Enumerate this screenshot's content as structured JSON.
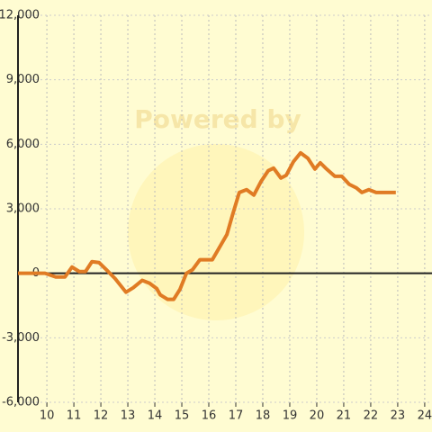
{
  "chart_data": {
    "type": "line",
    "watermark": "Powered by",
    "x": [
      8.93,
      9.93,
      10.33,
      10.67,
      10.93,
      11.2,
      11.43,
      11.67,
      11.93,
      12.2,
      12.53,
      12.93,
      13.2,
      13.53,
      13.8,
      14.07,
      14.2,
      14.47,
      14.7,
      14.93,
      15.17,
      15.4,
      15.67,
      16.13,
      16.67,
      16.87,
      17.13,
      17.4,
      17.67,
      17.93,
      18.2,
      18.4,
      18.67,
      18.87,
      19.13,
      19.4,
      19.67,
      19.93,
      20.13,
      20.33,
      20.67,
      20.93,
      21.2,
      21.47,
      21.67,
      21.93,
      22.2,
      22.93
    ],
    "series": [
      {
        "color": "#e07b24",
        "values": [
          0,
          0,
          -170,
          -170,
          290,
          80,
          80,
          540,
          500,
          170,
          -250,
          -880,
          -670,
          -330,
          -460,
          -710,
          -1000,
          -1210,
          -1210,
          -750,
          0,
          170,
          630,
          630,
          1800,
          2680,
          3760,
          3890,
          3640,
          4260,
          4770,
          4890,
          4430,
          4560,
          5180,
          5600,
          5350,
          4850,
          5140,
          4890,
          4510,
          4510,
          4140,
          3970,
          3760,
          3890,
          3760,
          3760
        ]
      }
    ],
    "xlim": [
      8.93,
      24.27
    ],
    "xticks": [
      10,
      11,
      12,
      13,
      14,
      15,
      16,
      17,
      18,
      19,
      20,
      21,
      22,
      23,
      24
    ],
    "ylim": [
      -6000,
      12000
    ],
    "yticks": [
      {
        "value": -6000,
        "label": "-6,000"
      },
      {
        "value": -3000,
        "label": "-3,000"
      },
      0,
      {
        "value": 3000,
        "label": "3,000"
      },
      {
        "value": 6000,
        "label": "6,000"
      },
      {
        "value": 9000,
        "label": "9,000"
      },
      {
        "value": 12000,
        "label": "12,000"
      }
    ],
    "grid": true
  }
}
